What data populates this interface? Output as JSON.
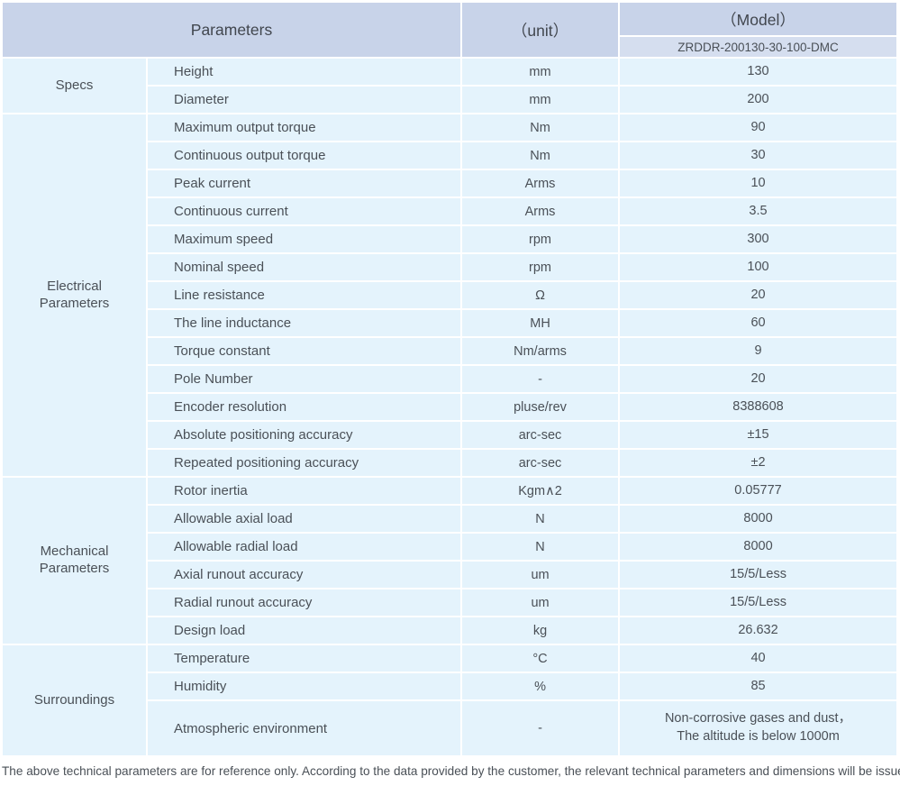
{
  "colors": {
    "header_bg": "#c8d3e9",
    "model_row_bg": "#d5deef",
    "cell_bg": "#e4f3fc",
    "separator": "#ffffff",
    "text": "#4a5057"
  },
  "header": {
    "parameters_label": "Parameters",
    "unit_label": "（unit）",
    "model_label": "（Model）",
    "model_number": "ZRDDR-200130-30-100-DMC"
  },
  "table": {
    "sections": [
      {
        "group": "Specs",
        "rows": [
          {
            "name": "Height",
            "unit": "mm",
            "value": "130"
          },
          {
            "name": "Diameter",
            "unit": "mm",
            "value": "200"
          }
        ]
      },
      {
        "group": "Electrical\nParameters",
        "rows": [
          {
            "name": "Maximum output torque",
            "unit": "Nm",
            "value": "90"
          },
          {
            "name": "Continuous output torque",
            "unit": "Nm",
            "value": "30"
          },
          {
            "name": "Peak current",
            "unit": "Arms",
            "value": "10"
          },
          {
            "name": "Continuous current",
            "unit": "Arms",
            "value": "3.5"
          },
          {
            "name": "Maximum speed",
            "unit": "rpm",
            "value": "300"
          },
          {
            "name": "Nominal speed",
            "unit": "rpm",
            "value": "100"
          },
          {
            "name": "Line resistance",
            "unit": "Ω",
            "value": "20"
          },
          {
            "name": "The line inductance",
            "unit": "MH",
            "value": "60"
          },
          {
            "name": "Torque constant",
            "unit": "Nm/arms",
            "value": "9"
          },
          {
            "name": "Pole Number",
            "unit": "-",
            "value": "20"
          },
          {
            "name": "Encoder resolution",
            "unit": "pluse/rev",
            "value": "8388608"
          },
          {
            "name": "Absolute positioning accuracy",
            "unit": "arc-sec",
            "value": "±15"
          },
          {
            "name": "Repeated positioning accuracy",
            "unit": "arc-sec",
            "value": "±2"
          }
        ]
      },
      {
        "group": "Mechanical\nParameters",
        "rows": [
          {
            "name": "Rotor inertia",
            "unit": "Kgm∧2",
            "value": "0.05777"
          },
          {
            "name": "Allowable axial load",
            "unit": "N",
            "value": "8000"
          },
          {
            "name": "Allowable radial load",
            "unit": "N",
            "value": "8000"
          },
          {
            "name": "Axial runout accuracy",
            "unit": "um",
            "value": "15/5/Less"
          },
          {
            "name": "Radial runout accuracy",
            "unit": "um",
            "value": "15/5/Less"
          },
          {
            "name": "Design load",
            "unit": "kg",
            "value": "26.632"
          }
        ]
      },
      {
        "group": "Surroundings",
        "rows": [
          {
            "name": "Temperature",
            "unit": "°C",
            "value": "40"
          },
          {
            "name": "Humidity",
            "unit": "%",
            "value": "85"
          },
          {
            "name": "Atmospheric environment",
            "unit": "-",
            "value": "Non-corrosive gases and dust，\nThe altitude is below 1000m",
            "tall": true
          }
        ]
      }
    ]
  },
  "footer": {
    "note": "The above technical parameters are for reference only. According to the data provided by the customer, the relevant technical parameters and dimensions will be issued."
  }
}
